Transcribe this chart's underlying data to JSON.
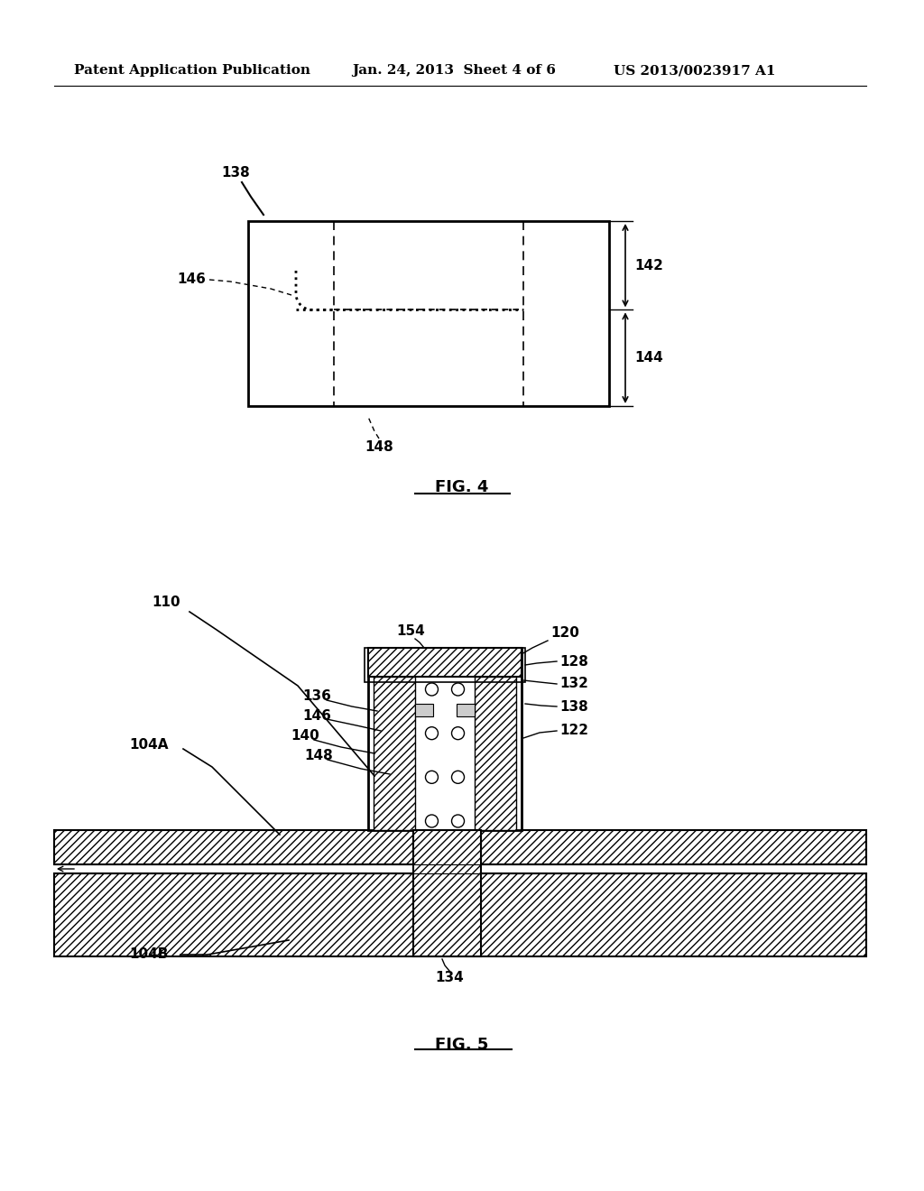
{
  "background_color": "#ffffff",
  "header_left": "Patent Application Publication",
  "header_mid": "Jan. 24, 2013  Sheet 4 of 6",
  "header_right": "US 2013/0023917 A1",
  "fig4_caption": "FIG. 4",
  "fig5_caption": "FIG. 5",
  "label_138_fig4": "138",
  "label_146": "146",
  "label_142": "142",
  "label_144": "144",
  "label_148_fig4": "148",
  "label_110": "110",
  "label_104A": "104A",
  "label_136": "136",
  "label_146b": "146",
  "label_140": "140",
  "label_148b": "148",
  "label_154": "154",
  "label_120": "120",
  "label_128": "128",
  "label_132": "132",
  "label_138b": "138",
  "label_122": "122",
  "label_104B": "104B",
  "label_134": "134"
}
